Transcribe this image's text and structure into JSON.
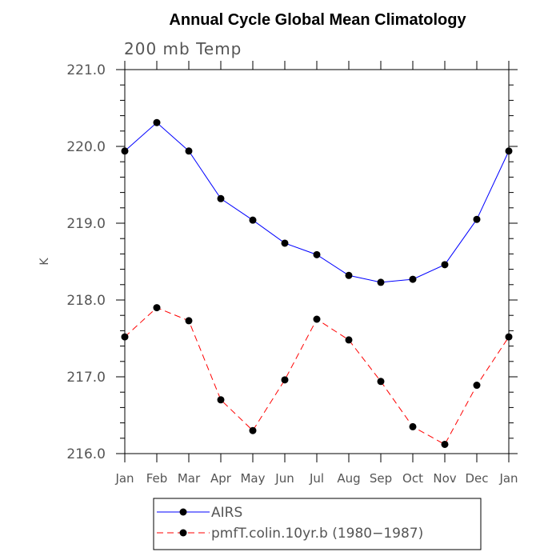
{
  "chart_data": {
    "type": "line",
    "title": "Annual Cycle Global Mean Climatology",
    "subtitle": "200 mb Temp",
    "xlabel": "",
    "ylabel": "K",
    "categories": [
      "Jan",
      "Feb",
      "Mar",
      "Apr",
      "May",
      "Jun",
      "Jul",
      "Aug",
      "Sep",
      "Oct",
      "Nov",
      "Dec",
      "Jan"
    ],
    "ylim": [
      216.0,
      221.0
    ],
    "yticks": [
      "216.0",
      "217.0",
      "218.0",
      "219.0",
      "220.0",
      "221.0"
    ],
    "grid": false,
    "legend_position": "bottom",
    "series": [
      {
        "name": "AIRS",
        "color": "#0000ff",
        "dash": "solid",
        "values": [
          219.94,
          220.31,
          219.94,
          219.32,
          219.04,
          218.74,
          218.59,
          218.32,
          218.23,
          218.27,
          218.46,
          219.05,
          219.94
        ]
      },
      {
        "name": "pmfT.colin.10yr.b (1980−1987)",
        "color": "#ff0000",
        "dash": "dashed",
        "values": [
          217.52,
          217.9,
          217.73,
          216.7,
          216.3,
          216.96,
          217.75,
          217.48,
          216.94,
          216.35,
          216.12,
          216.89,
          217.52
        ]
      }
    ]
  }
}
